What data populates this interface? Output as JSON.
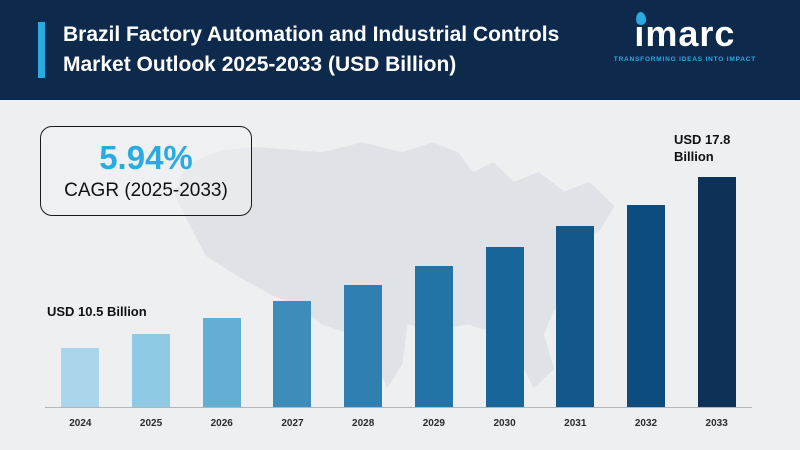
{
  "header": {
    "title_line1": "Brazil Factory Automation and Industrial Controls",
    "title_line2": "Market Outlook 2025-2033 (USD Billion)",
    "logo_text": "imarc",
    "logo_tagline": "TRANSFORMING IDEAS INTO IMPACT",
    "colors": {
      "background": "#0d2a4d",
      "accent": "#29abe2"
    }
  },
  "cagr_box": {
    "value": "5.94%",
    "label": "CAGR (2025-2033)"
  },
  "annotations": {
    "first_bar_label": "USD 10.5 Billion",
    "last_bar_label_line1": "USD 17.8",
    "last_bar_label_line2": "Billion"
  },
  "chart_data": {
    "type": "bar",
    "title": "Brazil Factory Automation and Industrial Controls Market Outlook 2025-2033 (USD Billion)",
    "unit": "USD Billion",
    "categories": [
      "2024",
      "2025",
      "2026",
      "2027",
      "2028",
      "2029",
      "2030",
      "2031",
      "2032",
      "2033"
    ],
    "values": [
      10.5,
      11.1,
      11.8,
      12.5,
      13.2,
      14.0,
      14.8,
      15.7,
      16.6,
      17.8
    ],
    "value_labels_shown": {
      "2024": "USD 10.5 Billion",
      "2033": "USD 17.8 Billion"
    },
    "cagr": "5.94%",
    "xlabel": "",
    "ylabel": "",
    "legend": false,
    "grid": false,
    "bar_colors": [
      "#a9d6ea",
      "#8fc9e4",
      "#64aed3",
      "#3d8cba",
      "#2f80b0",
      "#2374a6",
      "#18659a",
      "#12588b",
      "#0e4c7d",
      "#0e3257"
    ]
  }
}
